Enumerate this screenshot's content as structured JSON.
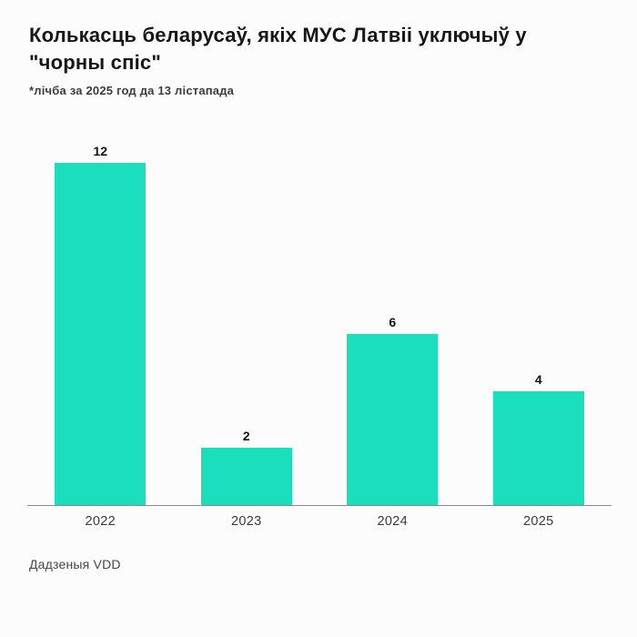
{
  "title": "Колькасць беларусаў, якіх МУС Латвіі уключыў у \"чорны спіс\"",
  "subtitle": "*лічба за 2025 год да 13 лістапада",
  "source": "Дадзеныя VDD",
  "colors": {
    "bar": "#1adebc",
    "title_text": "#171717",
    "subtitle_text": "#3d3d3d",
    "axis_line": "#8a8a8a",
    "value_label": "#111111",
    "tick_label": "#3a3a3a",
    "background": "#fcfcfd"
  },
  "chart_data": {
    "type": "bar",
    "categories": [
      "2022",
      "2023",
      "2024",
      "2025"
    ],
    "values": [
      12,
      2,
      6,
      4
    ],
    "title": "Колькасць беларусаў, якіх МУС Латвіі уключыў у \"чорны спіс\"",
    "subtitle": "*лічба за 2025 год да 13 лістапада",
    "source": "Дадзеныя VDD",
    "xlabel": "",
    "ylabel": "",
    "ylim": [
      0,
      12.6
    ],
    "bar_color": "#1adebc",
    "data_labels": true,
    "grid": false,
    "legend": false
  }
}
